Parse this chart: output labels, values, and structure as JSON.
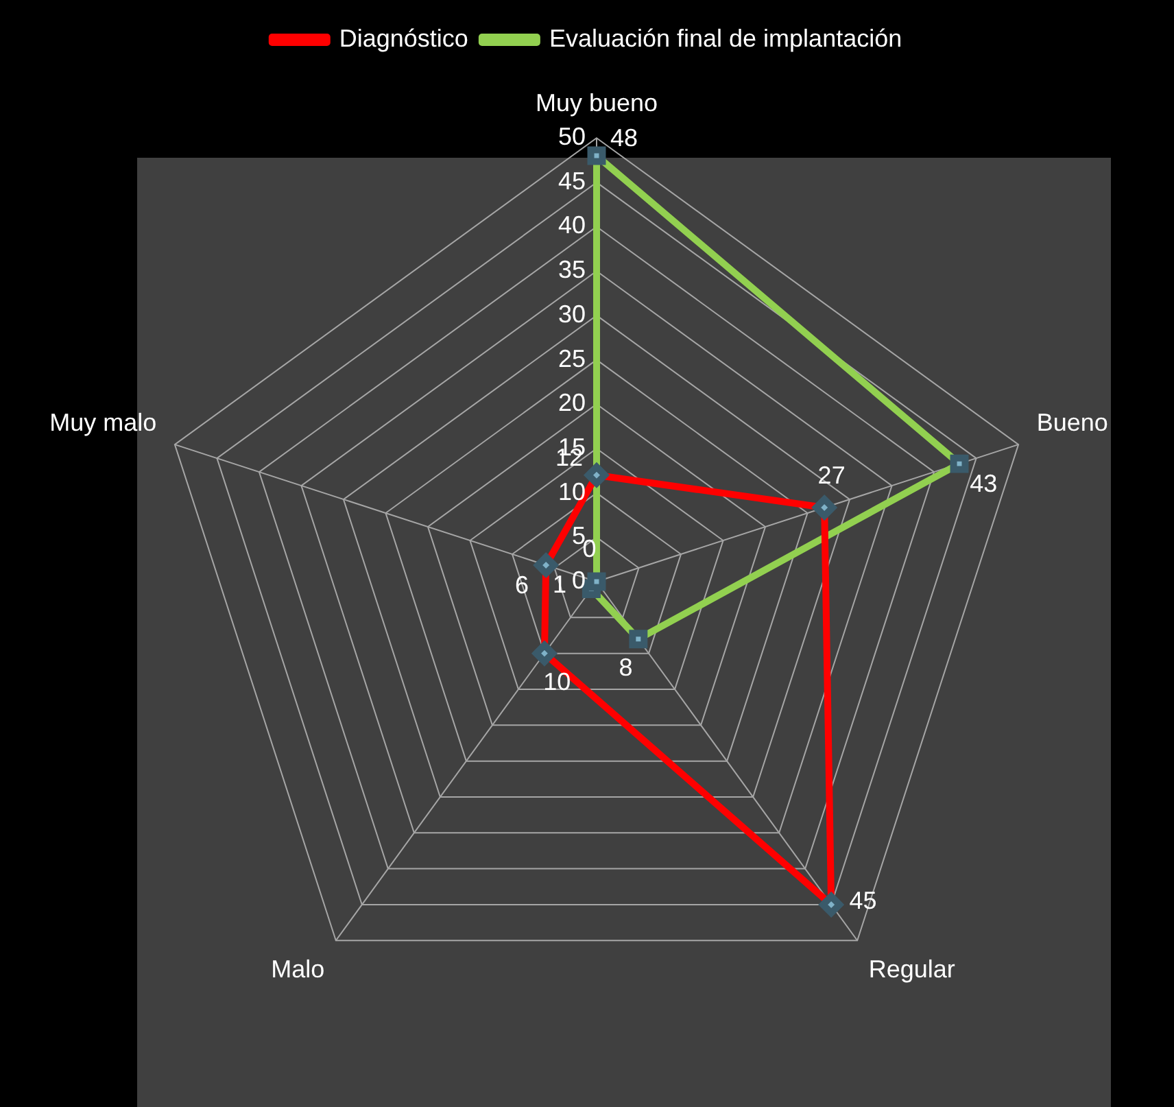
{
  "chart_data": {
    "type": "radar",
    "categories": [
      "Muy bueno",
      "Bueno",
      "Regular",
      "Malo",
      "Muy malo"
    ],
    "series": [
      {
        "name": "Diagnóstico",
        "color": "#ff0000",
        "marker": "diamond",
        "values": [
          12,
          27,
          45,
          10,
          6
        ]
      },
      {
        "name": "Evaluación final de implantación",
        "color": "#92d050",
        "marker": "square",
        "values": [
          48,
          43,
          8,
          1,
          0
        ]
      }
    ],
    "ylim": [
      0,
      50
    ],
    "yticks": [
      0,
      5,
      10,
      15,
      20,
      25,
      30,
      35,
      40,
      45,
      50
    ],
    "grid": true,
    "legend": "top",
    "data_labels": true
  }
}
